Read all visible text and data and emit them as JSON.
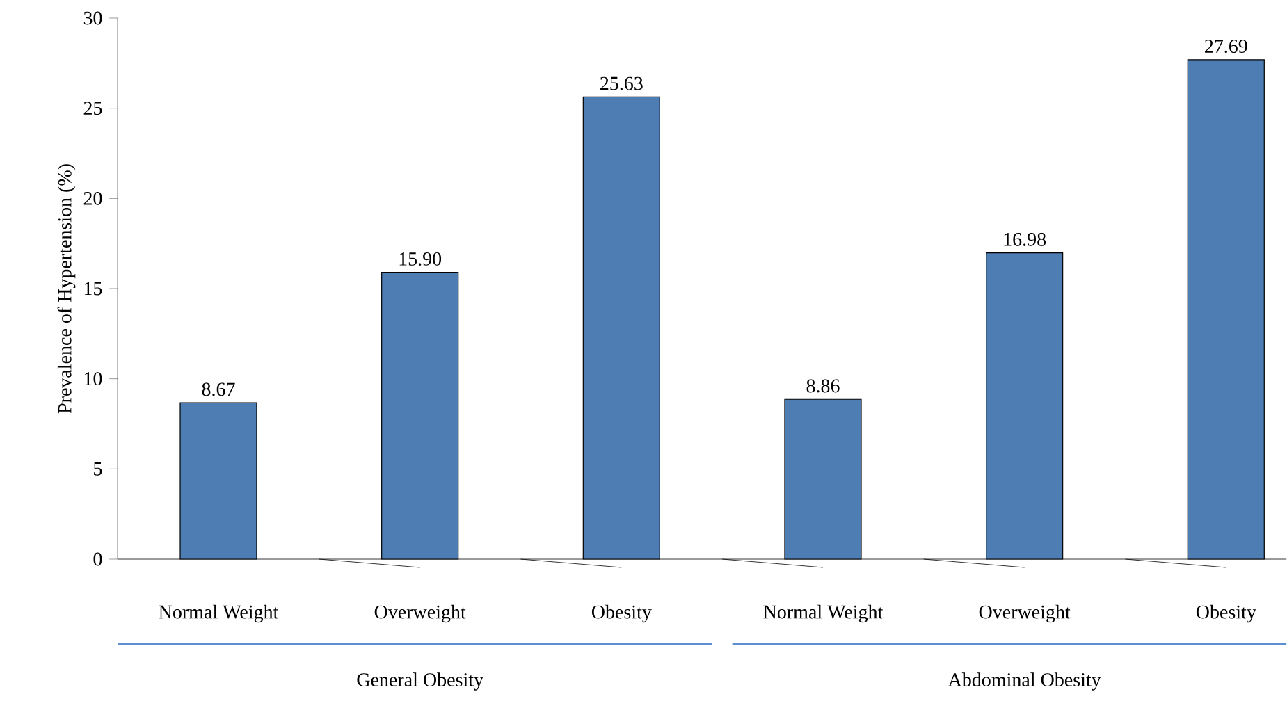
{
  "chart_data": {
    "type": "bar",
    "ylabel": "Prevalence of Hypertension (%)",
    "categories": [
      "Normal Weight",
      "Overweight",
      "Obesity",
      "Normal Weight",
      "Overweight",
      "Obesity"
    ],
    "values": [
      8.67,
      15.9,
      25.63,
      8.86,
      16.98,
      27.69
    ],
    "value_labels": [
      "8.67",
      "15.90",
      "25.63",
      "8.86",
      "16.98",
      "27.69"
    ],
    "color": "#4d7db3",
    "ylim": [
      0,
      30
    ],
    "yticks": [
      0,
      5,
      10,
      15,
      20,
      25,
      30
    ],
    "annotations": [
      "General Obesity",
      "Abdominal Obesity"
    ],
    "grid": false
  }
}
